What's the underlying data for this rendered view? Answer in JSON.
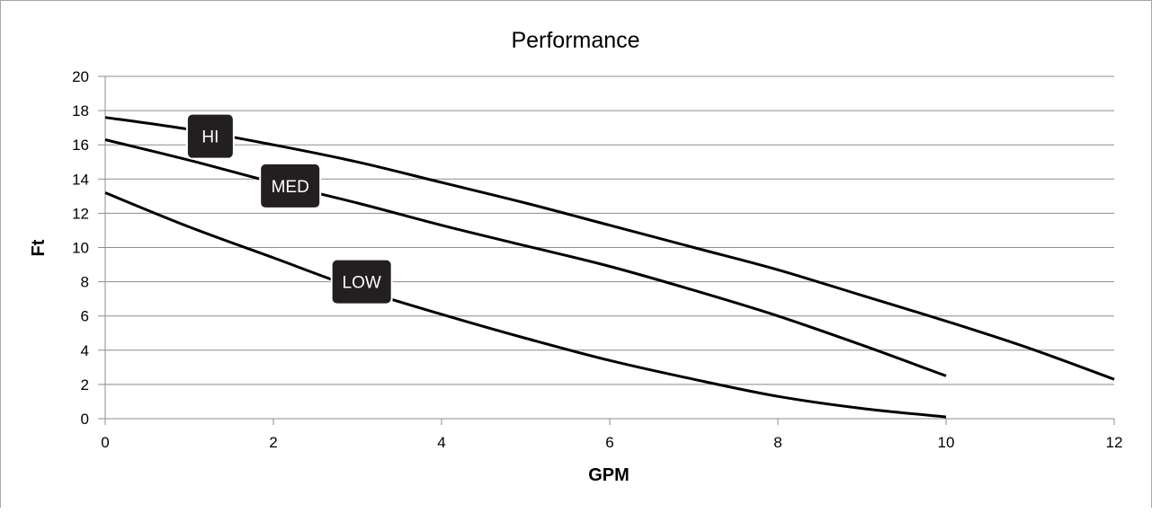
{
  "chart_data": {
    "type": "line",
    "title": "Performance",
    "xlabel": "GPM",
    "ylabel": "Ft",
    "xlim": [
      0,
      12
    ],
    "ylim": [
      0,
      20
    ],
    "x_ticks": [
      0,
      2,
      4,
      6,
      8,
      10,
      12
    ],
    "y_ticks": [
      0,
      2,
      4,
      6,
      8,
      10,
      12,
      14,
      16,
      18,
      20
    ],
    "grid": "horizontal",
    "legend": "none",
    "colors": {
      "line": "#000000",
      "grid": "#8c8c8c",
      "label_bg": "#231f20",
      "label_text": "#ffffff"
    },
    "series": [
      {
        "name": "HI",
        "x": [
          0,
          1,
          2,
          3,
          4,
          5,
          6,
          7,
          8,
          9,
          10,
          11,
          12
        ],
        "y": [
          17.6,
          16.9,
          16.0,
          15.0,
          13.8,
          12.6,
          11.3,
          10.0,
          8.7,
          7.2,
          5.7,
          4.1,
          2.3
        ]
      },
      {
        "name": "MED",
        "x": [
          0,
          1,
          2,
          3,
          4,
          5,
          6,
          7,
          8,
          9,
          10
        ],
        "y": [
          16.3,
          15.1,
          13.8,
          12.6,
          11.3,
          10.1,
          8.9,
          7.5,
          6.0,
          4.3,
          2.5
        ]
      },
      {
        "name": "LOW",
        "x": [
          0,
          1,
          2,
          3,
          4,
          5,
          6,
          7,
          8,
          9,
          10
        ],
        "y": [
          13.2,
          11.2,
          9.4,
          7.6,
          6.1,
          4.7,
          3.4,
          2.3,
          1.3,
          0.6,
          0.1
        ]
      }
    ],
    "annotations": [
      {
        "text": "HI",
        "series": "HI",
        "x": 1.25,
        "y": 16.5
      },
      {
        "text": "MED",
        "series": "MED",
        "x": 2.2,
        "y": 13.6
      },
      {
        "text": "LOW",
        "series": "LOW",
        "x": 3.05,
        "y": 8.0
      }
    ]
  }
}
